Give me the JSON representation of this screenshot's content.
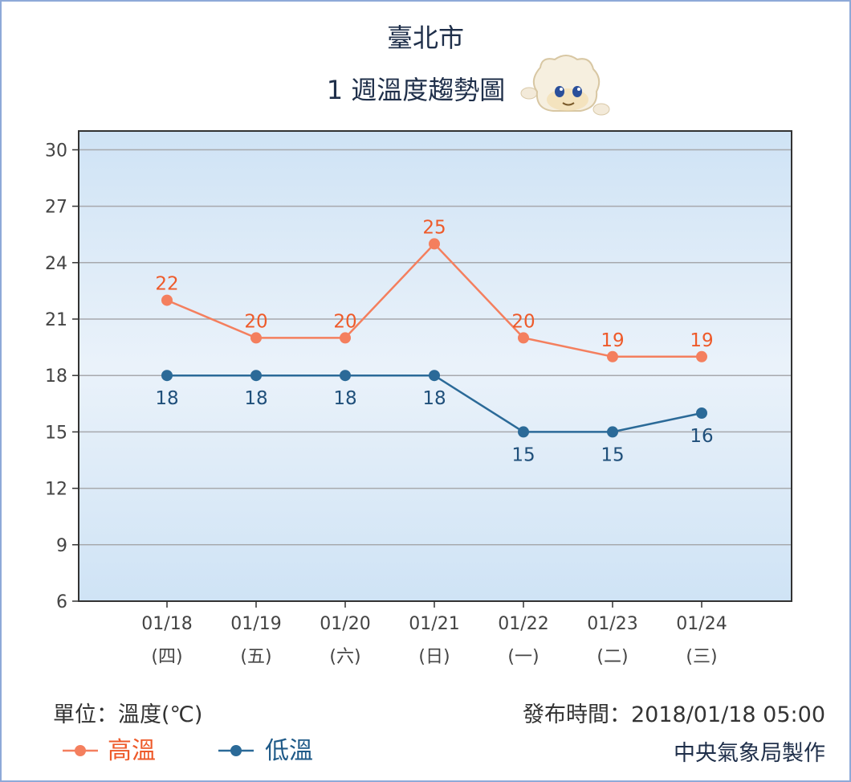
{
  "chart_data": {
    "type": "line",
    "title": "臺北市",
    "subtitle": "1 週溫度趨勢圖",
    "categories": [
      "01/18",
      "01/19",
      "01/20",
      "01/21",
      "01/22",
      "01/23",
      "01/24"
    ],
    "weekdays": [
      "(四)",
      "(五)",
      "(六)",
      "(日)",
      "(一)",
      "(二)",
      "(三)"
    ],
    "yticks": [
      6,
      9,
      12,
      15,
      18,
      21,
      24,
      27,
      30
    ],
    "ylim": [
      6,
      31
    ],
    "grid": true,
    "series": [
      {
        "name": "高溫",
        "color": "#f47f5e",
        "label_color": "#ee5a2a",
        "values": [
          22,
          20,
          20,
          25,
          20,
          19,
          19
        ]
      },
      {
        "name": "低溫",
        "color": "#2b6a98",
        "label_color": "#1f4f7a",
        "values": [
          18,
          18,
          18,
          18,
          15,
          15,
          16
        ]
      }
    ],
    "legend_position": "bottom-left"
  },
  "footer": {
    "unit": "單位：溫度(℃)",
    "issued": "發布時間：2018/01/18 05:00",
    "maker": "中央氣象局製作"
  },
  "mascot_icon": "weather-mascot-icon"
}
